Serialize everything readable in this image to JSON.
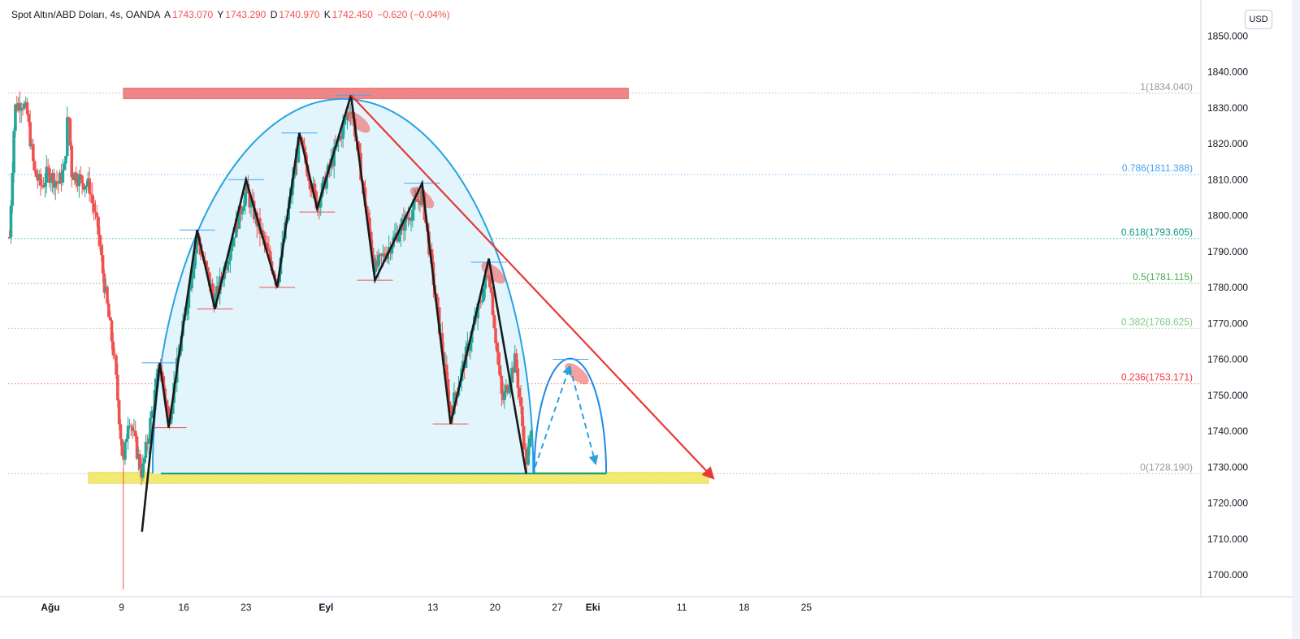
{
  "header": {
    "symbol": "Spot Altın/ABD Doları, 4s, OANDA",
    "o_label": "A",
    "o_value": "1743.070",
    "h_label": "Y",
    "h_value": "1743.290",
    "l_label": "D",
    "l_value": "1740.970",
    "c_label": "K",
    "c_value": "1742.450",
    "change": "−0.620 (−0.04%)"
  },
  "currency_button": "USD",
  "chart_data": {
    "type": "candlestick",
    "ylim": [
      1694,
      1856
    ],
    "y_ticks": [
      {
        "value": 1700,
        "label": "1700.000"
      },
      {
        "value": 1710,
        "label": "1710.000"
      },
      {
        "value": 1720,
        "label": "1720.000"
      },
      {
        "value": 1730,
        "label": "1730.000"
      },
      {
        "value": 1740,
        "label": "1740.000"
      },
      {
        "value": 1750,
        "label": "1750.000"
      },
      {
        "value": 1760,
        "label": "1760.000"
      },
      {
        "value": 1770,
        "label": "1770.000"
      },
      {
        "value": 1780,
        "label": "1780.000"
      },
      {
        "value": 1790,
        "label": "1790.000"
      },
      {
        "value": 1800,
        "label": "1800.000"
      },
      {
        "value": 1810,
        "label": "1810.000"
      },
      {
        "value": 1820,
        "label": "1820.000"
      },
      {
        "value": 1830,
        "label": "1830.000"
      },
      {
        "value": 1840,
        "label": "1840.000"
      },
      {
        "value": 1850,
        "label": "1850.000"
      }
    ],
    "x_ticks": [
      {
        "day": 0,
        "label": "Ağu"
      },
      {
        "day": 8,
        "label": "9"
      },
      {
        "day": 15,
        "label": "16"
      },
      {
        "day": 22,
        "label": "23"
      },
      {
        "day": 31,
        "label": "Eyl"
      },
      {
        "day": 43,
        "label": "13"
      },
      {
        "day": 50,
        "label": "20"
      },
      {
        "day": 57,
        "label": "27"
      },
      {
        "day": 61,
        "label": "Eki"
      },
      {
        "day": 71,
        "label": "11"
      },
      {
        "day": 78,
        "label": "18"
      },
      {
        "day": 85,
        "label": "25"
      }
    ],
    "fib_levels": [
      {
        "ratio": "1",
        "value": 1834.04,
        "label": "1(1834.040)",
        "color": "#9598a1"
      },
      {
        "ratio": "0.786",
        "value": 1811.388,
        "label": "0.786(1811.388)",
        "color": "#42a5f5"
      },
      {
        "ratio": "0.618",
        "value": 1793.605,
        "label": "0.618(1793.605)",
        "color": "#089981"
      },
      {
        "ratio": "0.5",
        "value": 1781.115,
        "label": "0.5(1781.115)",
        "color": "#4caf50"
      },
      {
        "ratio": "0.382",
        "value": 1768.625,
        "label": "0.382(1768.625)",
        "color": "#81c784"
      },
      {
        "ratio": "0.236",
        "value": 1753.171,
        "label": "0.236(1753.171)",
        "color": "#f23645"
      },
      {
        "ratio": "0",
        "value": 1728.19,
        "label": "0(1728.190)",
        "color": "#9598a1"
      }
    ],
    "resistance_zone": {
      "x_day": [
        8.2,
        65
      ],
      "y": [
        1832.5,
        1835.5
      ],
      "color": "#f28b8b"
    },
    "support_zone": {
      "x_day": [
        4.3,
        74
      ],
      "y": [
        1725.5,
        1728.5
      ],
      "color": "#f5ef7a"
    },
    "zigzag": [
      {
        "day": 10.3,
        "price": 1712
      },
      {
        "day": 12.3,
        "price": 1759
      },
      {
        "day": 13.3,
        "price": 1741
      },
      {
        "day": 16.5,
        "price": 1796
      },
      {
        "day": 18.5,
        "price": 1774
      },
      {
        "day": 22,
        "price": 1810
      },
      {
        "day": 25.5,
        "price": 1780
      },
      {
        "day": 28,
        "price": 1823
      },
      {
        "day": 30,
        "price": 1802
      },
      {
        "day": 33.8,
        "price": 1833.5
      },
      {
        "day": 36.5,
        "price": 1782
      },
      {
        "day": 41.8,
        "price": 1809
      },
      {
        "day": 45,
        "price": 1742
      },
      {
        "day": 49.3,
        "price": 1788
      },
      {
        "day": 53.5,
        "price": 1728.2
      }
    ],
    "peak_markers": [
      {
        "day": 12.3,
        "price": 1759
      },
      {
        "day": 16.5,
        "price": 1796
      },
      {
        "day": 22,
        "price": 1810
      },
      {
        "day": 28,
        "price": 1823
      },
      {
        "day": 34,
        "price": 1833.5
      },
      {
        "day": 41.8,
        "price": 1809
      },
      {
        "day": 49.3,
        "price": 1787
      },
      {
        "day": 58.5,
        "price": 1760
      }
    ],
    "trough_markers": [
      {
        "day": 13.3,
        "price": 1741
      },
      {
        "day": 18.5,
        "price": 1774
      },
      {
        "day": 25.5,
        "price": 1780
      },
      {
        "day": 30,
        "price": 1801
      },
      {
        "day": 36.5,
        "price": 1782
      },
      {
        "day": 45,
        "price": 1742
      }
    ],
    "trendline": {
      "from": {
        "day": 33.8,
        "price": 1833.5
      },
      "to": {
        "day": 74.5,
        "price": 1727
      },
      "color": "#e53935"
    },
    "arc": {
      "x_day": [
        11.5,
        54.3
      ],
      "base": 1728.2,
      "top": 1832.5,
      "color": "#29a3e0"
    },
    "small_arc": {
      "x_day": [
        54.4,
        62.5
      ],
      "base": 1728.2,
      "top": 1760.2,
      "color": "#1e88e5"
    },
    "dashed_projection": [
      {
        "day": 54.5,
        "price": 1730
      },
      {
        "day": 58.4,
        "price": 1758
      },
      {
        "day": 61.3,
        "price": 1731
      }
    ],
    "highlight_ellipses": [
      {
        "day": 34.6,
        "price": 1826
      },
      {
        "day": 41.8,
        "price": 1805
      },
      {
        "day": 49.8,
        "price": 1784
      },
      {
        "day": 59.2,
        "price": 1756
      }
    ],
    "colors": {
      "up": "#26a69a",
      "down": "#ef5350",
      "zigzag": "#1a1a1a",
      "grid": "#9598a1"
    }
  }
}
